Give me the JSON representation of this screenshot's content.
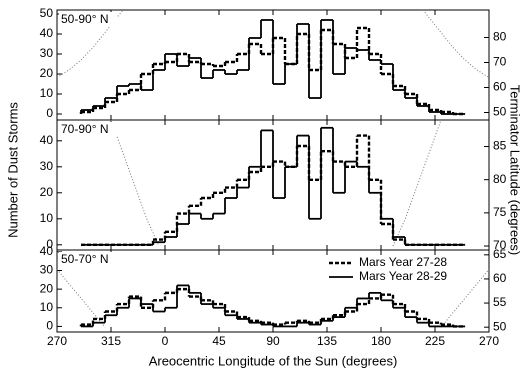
{
  "shared": {
    "x_label": "Areocentric Longitude of the Sun (degrees)",
    "y_label": "Number of Dust Storms",
    "y2_label": "Terminator Latitude (degrees)",
    "xlim": [
      -90,
      270
    ],
    "xticks": [
      {
        "value": -90,
        "label": "270"
      },
      {
        "value": -45,
        "label": "315"
      },
      0,
      45,
      90,
      135,
      180,
      225,
      {
        "value": 270,
        "label": "270"
      }
    ],
    "bins": [
      -70,
      -60,
      -50,
      -40,
      -30,
      -20,
      -10,
      0,
      10,
      20,
      30,
      40,
      50,
      60,
      70,
      80,
      90,
      100,
      110,
      120,
      130,
      140,
      150,
      160,
      170,
      180,
      190,
      200,
      210,
      220,
      230,
      240,
      250
    ]
  },
  "chart_data": [
    {
      "type": "histogram",
      "title": "50-90° N",
      "ylim": [
        -3,
        52
      ],
      "yticks": [
        0,
        10,
        20,
        30,
        40,
        50
      ],
      "y2lim": [
        47,
        91
      ],
      "y2ticks": [
        50,
        60,
        70,
        80
      ],
      "series": [
        {
          "color": "#000000",
          "dash": true,
          "values": [
            1,
            3,
            6,
            10,
            12,
            20,
            25,
            26,
            30,
            26,
            25,
            24,
            26,
            30,
            35,
            30,
            38,
            25,
            40,
            22,
            42,
            35,
            28,
            43,
            30,
            20,
            14,
            10,
            5,
            2,
            1,
            0
          ]
        },
        {
          "color": "#000000",
          "dash": false,
          "values": [
            2,
            4,
            8,
            14,
            15,
            12,
            22,
            30,
            24,
            28,
            18,
            22,
            20,
            22,
            38,
            47,
            15,
            25,
            45,
            8,
            47,
            20,
            33,
            32,
            27,
            25,
            12,
            8,
            4,
            1,
            0,
            0
          ]
        }
      ],
      "lines": [
        {
          "axis": "y2",
          "color": "#777777",
          "x": [
            -90,
            -80,
            -70,
            -60,
            -50,
            -40,
            -35,
            90,
            215,
            220,
            230,
            240,
            250,
            260,
            270
          ],
          "values": [
            64,
            67,
            71,
            76,
            82,
            88,
            91,
            null,
            91,
            88,
            82,
            76,
            71,
            67,
            64
          ]
        }
      ]
    },
    {
      "type": "histogram",
      "title": "70-90° N",
      "ylim": [
        -2,
        48
      ],
      "yticks": [
        0,
        10,
        20,
        30,
        40
      ],
      "y2lim": [
        69.4,
        89
      ],
      "y2ticks": [
        70,
        75,
        80,
        85
      ],
      "series": [
        {
          "color": "#000000",
          "dash": true,
          "values": [
            0,
            0,
            0,
            0,
            0,
            0,
            2,
            5,
            12,
            15,
            18,
            20,
            22,
            25,
            28,
            30,
            32,
            30,
            38,
            25,
            36,
            32,
            30,
            42,
            25,
            8,
            2,
            0,
            0,
            0,
            0,
            0
          ]
        },
        {
          "color": "#000000",
          "dash": false,
          "values": [
            0,
            0,
            0,
            0,
            0,
            0,
            1,
            3,
            8,
            12,
            10,
            12,
            18,
            22,
            30,
            44,
            18,
            30,
            42,
            10,
            45,
            20,
            32,
            30,
            20,
            10,
            3,
            0,
            0,
            0,
            0,
            0
          ]
        }
      ],
      "lines": [
        {
          "axis": "y2",
          "color": "#777777",
          "x": [
            -45,
            -35,
            -25,
            -15,
            -5,
            90,
            190,
            200,
            210,
            220,
            230
          ],
          "values": [
            89,
            84,
            79,
            74,
            70,
            null,
            70,
            74,
            79,
            84,
            89
          ]
        }
      ]
    },
    {
      "type": "histogram",
      "title": "50-70° N",
      "ylim": [
        -3,
        41
      ],
      "yticks": [
        0,
        10,
        20,
        30,
        40
      ],
      "y2lim": [
        49,
        66
      ],
      "y2ticks": [
        50,
        55,
        60,
        65
      ],
      "legend": "right",
      "series": [
        {
          "name": "Mars Year 27-28",
          "color": "#000000",
          "dash": true,
          "values": [
            1,
            4,
            8,
            12,
            16,
            10,
            14,
            18,
            20,
            16,
            14,
            12,
            8,
            5,
            3,
            2,
            1,
            2,
            3,
            2,
            4,
            6,
            8,
            12,
            15,
            17,
            12,
            8,
            4,
            2,
            1,
            0
          ]
        },
        {
          "name": "Mars Year 28-29",
          "color": "#000000",
          "dash": false,
          "values": [
            0,
            2,
            6,
            10,
            15,
            12,
            8,
            10,
            22,
            18,
            12,
            10,
            6,
            4,
            2,
            1,
            0,
            0,
            2,
            1,
            3,
            5,
            10,
            15,
            18,
            14,
            10,
            5,
            2,
            0,
            0,
            0
          ]
        }
      ],
      "lines": [
        {
          "axis": "y2",
          "color": "#777777",
          "x": [
            -90,
            -80,
            -70,
            -60,
            -50,
            90,
            230,
            240,
            250,
            260,
            270
          ],
          "values": [
            62,
            59,
            56,
            53,
            50,
            null,
            50,
            53,
            56,
            59,
            62
          ]
        }
      ]
    }
  ]
}
